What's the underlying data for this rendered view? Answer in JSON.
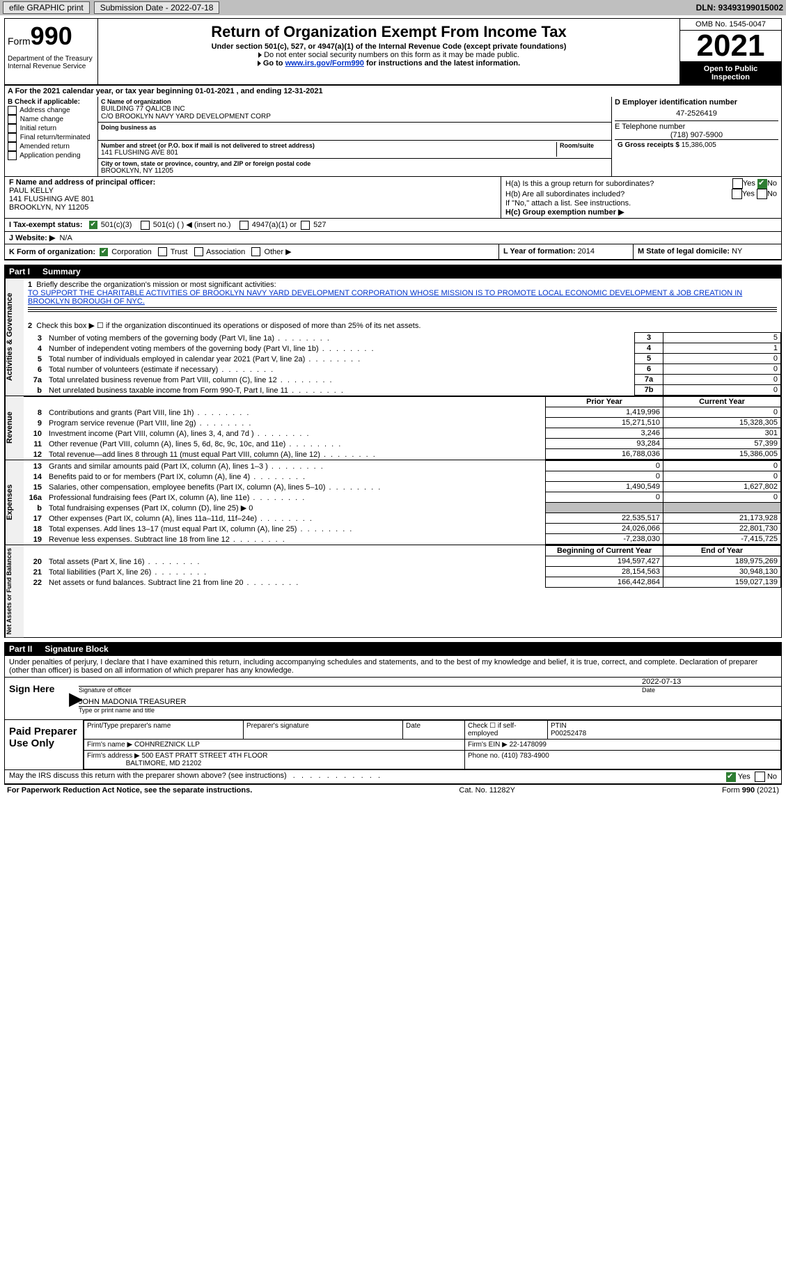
{
  "topbar": {
    "efile_label": "efile GRAPHIC print",
    "submission_label": "Submission Date - 2022-07-18",
    "dln_label": "DLN: 93493199015002"
  },
  "header": {
    "form_word": "Form",
    "form_no": "990",
    "dept": "Department of the Treasury",
    "irs": "Internal Revenue Service",
    "title": "Return of Organization Exempt From Income Tax",
    "sub": "Under section 501(c), 527, or 4947(a)(1) of the Internal Revenue Code (except private foundations)",
    "note1_pre": "Do not enter social security numbers on this form as it may be made public.",
    "note2_pre": "Go to ",
    "note2_link": "www.irs.gov/Form990",
    "note2_post": " for instructions and the latest information.",
    "omb": "OMB No. 1545-0047",
    "year": "2021",
    "openpub1": "Open to Public",
    "openpub2": "Inspection"
  },
  "period": {
    "label_a": "A For the 2021 calendar year, or tax year beginning ",
    "begin": "01-01-2021",
    "mid": " , and ending ",
    "end": "12-31-2021"
  },
  "blockB": {
    "title": "B Check if applicable:",
    "opts": [
      "Address change",
      "Name change",
      "Initial return",
      "Final return/terminated",
      "Amended return",
      "Application pending"
    ]
  },
  "blockC": {
    "name_lbl": "C Name of organization",
    "name1": "BUILDING 77 QALICB INC",
    "name2": "C/O BROOKLYN NAVY YARD DEVELOPMENT CORP",
    "dba_lbl": "Doing business as",
    "addr_lbl": "Number and street (or P.O. box if mail is not delivered to street address)",
    "room_lbl": "Room/suite",
    "addr": "141 FLUSHING AVE 801",
    "city_lbl": "City or town, state or province, country, and ZIP or foreign postal code",
    "city": "BROOKLYN, NY  11205"
  },
  "blockD": {
    "ein_lbl": "D Employer identification number",
    "ein": "47-2526419",
    "tel_lbl": "E Telephone number",
    "tel": "(718) 907-5900",
    "gross_lbl": "G Gross receipts $ ",
    "gross": "15,386,005"
  },
  "blockF": {
    "lbl": "F Name and address of principal officer:",
    "name": "PAUL KELLY",
    "addr1": "141 FLUSHING AVE 801",
    "addr2": "BROOKLYN, NY  11205"
  },
  "blockH": {
    "ha": "H(a)  Is this a group return for subordinates?",
    "hb": "H(b)  Are all subordinates included?",
    "hb_note": "If \"No,\" attach a list. See instructions.",
    "hc": "H(c)  Group exemption number ▶",
    "yes": "Yes",
    "no": "No"
  },
  "taxexempt": {
    "i_lbl": "I   Tax-exempt status:",
    "s1": "501(c)(3)",
    "s2": "501(c) (  ) ◀ (insert no.)",
    "s3": "4947(a)(1) or",
    "s4": "527",
    "j_lbl": "J   Website: ▶",
    "j_val": "N/A"
  },
  "klm": {
    "k_lbl": "K Form of organization:",
    "k1": "Corporation",
    "k2": "Trust",
    "k3": "Association",
    "k4": "Other ▶",
    "l_lbl": "L Year of formation: ",
    "l_val": "2014",
    "m_lbl": "M State of legal domicile: ",
    "m_val": "NY"
  },
  "part1": {
    "hdr_no": "Part I",
    "hdr_title": "Summary",
    "line1_lbl": "Briefly describe the organization's mission or most significant activities:",
    "mission": "TO SUPPORT THE CHARITABLE ACTIVITIES OF BROOKLYN NAVY YARD DEVELOPMENT CORPORATION WHOSE MISSION IS TO PROMOTE LOCAL ECONOMIC DEVELOPMENT & JOB CREATION IN BROOKLYN BOROUGH OF NYC.",
    "line2": "Check this box ▶ ☐ if the organization discontinued its operations or disposed of more than 25% of its net assets.",
    "rows_ag": [
      {
        "n": "3",
        "d": "Number of voting members of the governing body (Part VI, line 1a)",
        "c": "3",
        "v": "5"
      },
      {
        "n": "4",
        "d": "Number of independent voting members of the governing body (Part VI, line 1b)",
        "c": "4",
        "v": "1"
      },
      {
        "n": "5",
        "d": "Total number of individuals employed in calendar year 2021 (Part V, line 2a)",
        "c": "5",
        "v": "0"
      },
      {
        "n": "6",
        "d": "Total number of volunteers (estimate if necessary)",
        "c": "6",
        "v": "0"
      },
      {
        "n": "7a",
        "d": "Total unrelated business revenue from Part VIII, column (C), line 12",
        "c": "7a",
        "v": "0"
      },
      {
        "n": "b",
        "d": "Net unrelated business taxable income from Form 990-T, Part I, line 11",
        "c": "7b",
        "v": "0"
      }
    ],
    "col_prior": "Prior Year",
    "col_curr": "Current Year",
    "rev_rows": [
      {
        "n": "8",
        "d": "Contributions and grants (Part VIII, line 1h)",
        "p": "1,419,996",
        "c": "0"
      },
      {
        "n": "9",
        "d": "Program service revenue (Part VIII, line 2g)",
        "p": "15,271,510",
        "c": "15,328,305"
      },
      {
        "n": "10",
        "d": "Investment income (Part VIII, column (A), lines 3, 4, and 7d )",
        "p": "3,246",
        "c": "301"
      },
      {
        "n": "11",
        "d": "Other revenue (Part VIII, column (A), lines 5, 6d, 8c, 9c, 10c, and 11e)",
        "p": "93,284",
        "c": "57,399"
      },
      {
        "n": "12",
        "d": "Total revenue—add lines 8 through 11 (must equal Part VIII, column (A), line 12)",
        "p": "16,788,036",
        "c": "15,386,005"
      }
    ],
    "exp_rows": [
      {
        "n": "13",
        "d": "Grants and similar amounts paid (Part IX, column (A), lines 1–3 )",
        "p": "0",
        "c": "0"
      },
      {
        "n": "14",
        "d": "Benefits paid to or for members (Part IX, column (A), line 4)",
        "p": "0",
        "c": "0"
      },
      {
        "n": "15",
        "d": "Salaries, other compensation, employee benefits (Part IX, column (A), lines 5–10)",
        "p": "1,490,549",
        "c": "1,627,802"
      },
      {
        "n": "16a",
        "d": "Professional fundraising fees (Part IX, column (A), line 11e)",
        "p": "0",
        "c": "0"
      },
      {
        "n": "b",
        "d": "Total fundraising expenses (Part IX, column (D), line 25) ▶ 0",
        "shade": true
      },
      {
        "n": "17",
        "d": "Other expenses (Part IX, column (A), lines 11a–11d, 11f–24e)",
        "p": "22,535,517",
        "c": "21,173,928"
      },
      {
        "n": "18",
        "d": "Total expenses. Add lines 13–17 (must equal Part IX, column (A), line 25)",
        "p": "24,026,066",
        "c": "22,801,730"
      },
      {
        "n": "19",
        "d": "Revenue less expenses. Subtract line 18 from line 12",
        "p": "-7,238,030",
        "c": "-7,415,725"
      }
    ],
    "col_beg": "Beginning of Current Year",
    "col_end": "End of Year",
    "na_rows": [
      {
        "n": "20",
        "d": "Total assets (Part X, line 16)",
        "p": "194,597,427",
        "c": "189,975,269"
      },
      {
        "n": "21",
        "d": "Total liabilities (Part X, line 26)",
        "p": "28,154,563",
        "c": "30,948,130"
      },
      {
        "n": "22",
        "d": "Net assets or fund balances. Subtract line 21 from line 20",
        "p": "166,442,864",
        "c": "159,027,139"
      }
    ]
  },
  "part2": {
    "hdr_no": "Part II",
    "hdr_title": "Signature Block",
    "decl": "Under penalties of perjury, I declare that I have examined this return, including accompanying schedules and statements, and to the best of my knowledge and belief, it is true, correct, and complete. Declaration of preparer (other than officer) is based on all information of which preparer has any knowledge.",
    "sign_here": "Sign Here",
    "sig_date": "2022-07-13",
    "sig_of_officer": "Signature of officer",
    "date_lbl": "Date",
    "officer_name": "JOHN MADONIA  TREASURER",
    "type_name": "Type or print name and title",
    "paid_title": "Paid Preparer Use Only",
    "print_type": "Print/Type preparer's name",
    "prep_sig": "Preparer's signature",
    "check_if": "Check ☐ if self-employed",
    "ptin_lbl": "PTIN",
    "ptin": "P00252478",
    "firm_name_lbl": "Firm's name   ▶",
    "firm_name": "COHNREZNICK LLP",
    "firm_ein_lbl": "Firm's EIN ▶ ",
    "firm_ein": "22-1478099",
    "firm_addr_lbl": "Firm's address ▶",
    "firm_addr1": "500 EAST PRATT STREET 4TH FLOOR",
    "firm_addr2": "BALTIMORE, MD  21202",
    "phone_lbl": "Phone no. ",
    "phone": "(410) 783-4900",
    "may_irs": "May the IRS discuss this return with the preparer shown above? (see instructions)"
  },
  "footer": {
    "pra": "For Paperwork Reduction Act Notice, see the separate instructions.",
    "cat": "Cat. No. 11282Y",
    "form": "Form 990 (2021)"
  },
  "vlabels": {
    "ag": "Activities & Governance",
    "rev": "Revenue",
    "exp": "Expenses",
    "na": "Net Assets or Fund Balances"
  }
}
